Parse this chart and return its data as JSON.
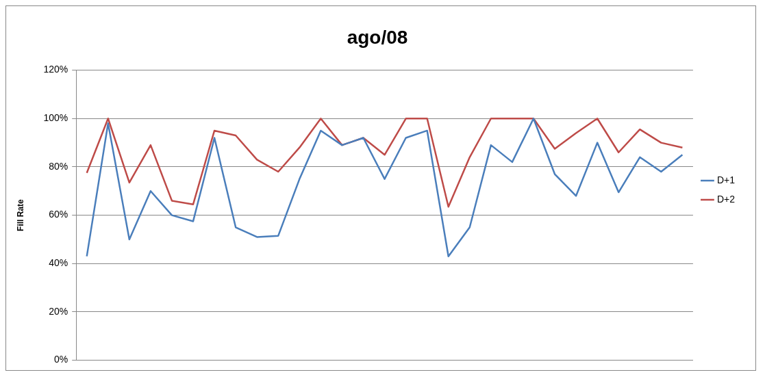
{
  "chart_data": {
    "type": "line",
    "title": "ago/08",
    "ylabel": "Fill Rate",
    "categories": [
      null,
      null,
      null,
      null,
      null,
      null,
      null,
      null,
      null,
      null,
      null,
      null,
      null,
      null,
      null,
      null,
      null,
      null,
      null,
      null,
      null,
      null,
      null,
      null,
      null,
      null,
      null,
      null,
      null
    ],
    "series": [
      {
        "name": "D+1",
        "color": "#4a7ebb",
        "values": [
          43,
          98,
          50,
          70,
          60,
          57.5,
          92,
          55,
          51,
          51.5,
          75,
          95,
          89,
          92,
          75,
          92,
          95,
          43,
          55,
          89,
          82,
          100,
          77,
          68,
          90,
          69.5,
          84,
          78,
          85
        ]
      },
      {
        "name": "D+2",
        "color": "#be4b48",
        "values": [
          77.5,
          100,
          73.5,
          89,
          66,
          64.5,
          95,
          93,
          83,
          78,
          88,
          100,
          89,
          92,
          85,
          100,
          100,
          63.5,
          84,
          100,
          100,
          100,
          87.5,
          94,
          100,
          86,
          95.5,
          90,
          88
        ]
      }
    ],
    "ylim": [
      0,
      120
    ],
    "yticks": [
      {
        "value": 0,
        "label": "0%"
      },
      {
        "value": 20,
        "label": "20%"
      },
      {
        "value": 40,
        "label": "40%"
      },
      {
        "value": 60,
        "label": "60%"
      },
      {
        "value": 80,
        "label": "80%"
      },
      {
        "value": 100,
        "label": "100%"
      },
      {
        "value": 120,
        "label": "120%"
      }
    ],
    "grid": "y",
    "legend": "right",
    "tick_labels": "y",
    "marker": "none",
    "line_style": "solid"
  }
}
